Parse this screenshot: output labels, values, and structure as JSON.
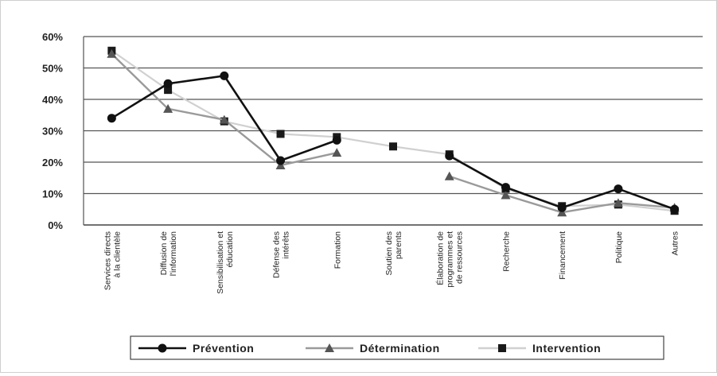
{
  "chart_data": {
    "type": "line",
    "title": "",
    "xlabel": "",
    "ylabel": "",
    "ylim": [
      0,
      0.6
    ],
    "yticks": [
      "0%",
      "10%",
      "20%",
      "30%",
      "40%",
      "50%",
      "60%"
    ],
    "grid": true,
    "legend_position": "bottom",
    "categories": [
      [
        "Services directs",
        "à la clientèle"
      ],
      [
        "Diffusion de",
        "l'information"
      ],
      [
        "Sensibilisation et",
        "éducation"
      ],
      [
        "Défense des",
        "intérêts"
      ],
      [
        "Formation"
      ],
      [
        "Soutien des",
        "parents"
      ],
      [
        "Élaboration de",
        "programmes et",
        "de ressources"
      ],
      [
        "Recherche"
      ],
      [
        "Financement"
      ],
      [
        "Politique"
      ],
      [
        "Autres"
      ]
    ],
    "series": [
      {
        "name": "Prévention",
        "color": "#111111",
        "marker": "circle",
        "values": [
          0.34,
          0.45,
          0.475,
          0.205,
          0.27,
          null,
          0.22,
          0.12,
          0.055,
          0.115,
          0.05
        ]
      },
      {
        "name": "Détermination",
        "color": "#9a9a9a",
        "marker": "triangle",
        "values": [
          0.545,
          0.37,
          0.335,
          0.19,
          0.23,
          null,
          0.155,
          0.095,
          0.04,
          0.07,
          0.055
        ]
      },
      {
        "name": "Intervention",
        "color": "#d0d0d0",
        "marker": "square",
        "values": [
          0.555,
          0.43,
          0.33,
          0.29,
          0.28,
          0.25,
          0.225,
          0.115,
          0.06,
          0.065,
          0.045
        ]
      }
    ]
  }
}
